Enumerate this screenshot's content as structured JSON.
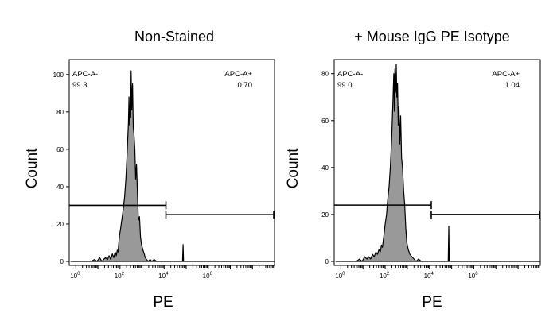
{
  "chart_data": [
    {
      "type": "histogram",
      "title": "Non-Stained",
      "xlabel": "PE",
      "ylabel": "Count",
      "x_scale": "log",
      "xlim": [
        0.5,
        1000000000
      ],
      "ylim": [
        0,
        108
      ],
      "y_ticks": [
        0,
        20,
        40,
        60,
        80,
        100
      ],
      "x_ticks": [
        {
          "label": "10",
          "exp": "0",
          "value": 1
        },
        {
          "label": "10",
          "exp": "2",
          "value": 100
        },
        {
          "label": "10",
          "exp": "4",
          "value": 10000
        },
        {
          "label": "10",
          "exp": "6",
          "value": 1000000
        }
      ],
      "gates": [
        {
          "name": "APC-A-",
          "percent": "99.3",
          "x_from": 0.5,
          "x_to": 12000,
          "y": 30
        },
        {
          "name": "APC-A+",
          "percent": "0.70",
          "x_from": 12000,
          "x_to": 1000000000,
          "y": 25
        }
      ],
      "points": [
        [
          0.6,
          0
        ],
        [
          5,
          0
        ],
        [
          7,
          1
        ],
        [
          9,
          0
        ],
        [
          12,
          2
        ],
        [
          15,
          0
        ],
        [
          18,
          1
        ],
        [
          22,
          2
        ],
        [
          27,
          1
        ],
        [
          32,
          3
        ],
        [
          38,
          1
        ],
        [
          45,
          4
        ],
        [
          52,
          2
        ],
        [
          60,
          5
        ],
        [
          68,
          3
        ],
        [
          75,
          6
        ],
        [
          82,
          5
        ],
        [
          88,
          10
        ],
        [
          95,
          14
        ],
        [
          105,
          17
        ],
        [
          120,
          22
        ],
        [
          140,
          28
        ],
        [
          160,
          34
        ],
        [
          185,
          44
        ],
        [
          210,
          58
        ],
        [
          240,
          74
        ],
        [
          255,
          88
        ],
        [
          270,
          73
        ],
        [
          290,
          86
        ],
        [
          305,
          77
        ],
        [
          320,
          102
        ],
        [
          340,
          81
        ],
        [
          370,
          95
        ],
        [
          400,
          72
        ],
        [
          430,
          68
        ],
        [
          470,
          60
        ],
        [
          510,
          44
        ],
        [
          560,
          52
        ],
        [
          620,
          36
        ],
        [
          680,
          22
        ],
        [
          760,
          24
        ],
        [
          850,
          13
        ],
        [
          950,
          9
        ],
        [
          1100,
          6
        ],
        [
          1250,
          4
        ],
        [
          1400,
          2
        ],
        [
          1600,
          1
        ],
        [
          1900,
          0
        ],
        [
          2300,
          1
        ],
        [
          2800,
          0
        ],
        [
          3500,
          1
        ],
        [
          4500,
          0
        ],
        [
          60000,
          0
        ],
        [
          68000,
          0
        ],
        [
          72000,
          9
        ],
        [
          76000,
          0
        ],
        [
          1000000000,
          0
        ]
      ]
    },
    {
      "type": "histogram",
      "title": "+ Mouse IgG PE Isotype",
      "xlabel": "PE",
      "ylabel": "Count",
      "x_scale": "log",
      "xlim": [
        0.5,
        1000000000
      ],
      "ylim": [
        0,
        86
      ],
      "y_ticks": [
        0,
        20,
        40,
        60,
        80
      ],
      "x_ticks": [
        {
          "label": "10",
          "exp": "0",
          "value": 1
        },
        {
          "label": "10",
          "exp": "2",
          "value": 100
        },
        {
          "label": "10",
          "exp": "4",
          "value": 10000
        },
        {
          "label": "10",
          "exp": "6",
          "value": 1000000
        }
      ],
      "gates": [
        {
          "name": "APC-A-",
          "percent": "99.0",
          "x_from": 0.5,
          "x_to": 12000,
          "y": 24
        },
        {
          "name": "APC-A+",
          "percent": "1.04",
          "x_from": 12000,
          "x_to": 1000000000,
          "y": 20
        }
      ],
      "points": [
        [
          0.6,
          0
        ],
        [
          5,
          0
        ],
        [
          7,
          1
        ],
        [
          9,
          0
        ],
        [
          12,
          2
        ],
        [
          15,
          1
        ],
        [
          18,
          2
        ],
        [
          22,
          1
        ],
        [
          27,
          3
        ],
        [
          32,
          2
        ],
        [
          38,
          4
        ],
        [
          45,
          3
        ],
        [
          52,
          5
        ],
        [
          60,
          4
        ],
        [
          68,
          7
        ],
        [
          75,
          6
        ],
        [
          82,
          9
        ],
        [
          90,
          12
        ],
        [
          100,
          16
        ],
        [
          115,
          20
        ],
        [
          130,
          26
        ],
        [
          150,
          32
        ],
        [
          170,
          40
        ],
        [
          195,
          52
        ],
        [
          220,
          66
        ],
        [
          245,
          80
        ],
        [
          260,
          64
        ],
        [
          275,
          82
        ],
        [
          295,
          72
        ],
        [
          315,
          84
        ],
        [
          335,
          70
        ],
        [
          360,
          76
        ],
        [
          390,
          58
        ],
        [
          420,
          66
        ],
        [
          460,
          50
        ],
        [
          500,
          62
        ],
        [
          550,
          44
        ],
        [
          610,
          40
        ],
        [
          680,
          30
        ],
        [
          760,
          24
        ],
        [
          850,
          14
        ],
        [
          950,
          8
        ],
        [
          1100,
          5
        ],
        [
          1300,
          3
        ],
        [
          1600,
          2
        ],
        [
          2000,
          1
        ],
        [
          2500,
          0
        ],
        [
          3200,
          1
        ],
        [
          4200,
          0
        ],
        [
          65000,
          0
        ],
        [
          70000,
          0
        ],
        [
          74000,
          15
        ],
        [
          78000,
          0
        ],
        [
          1000000000,
          0
        ]
      ]
    }
  ]
}
